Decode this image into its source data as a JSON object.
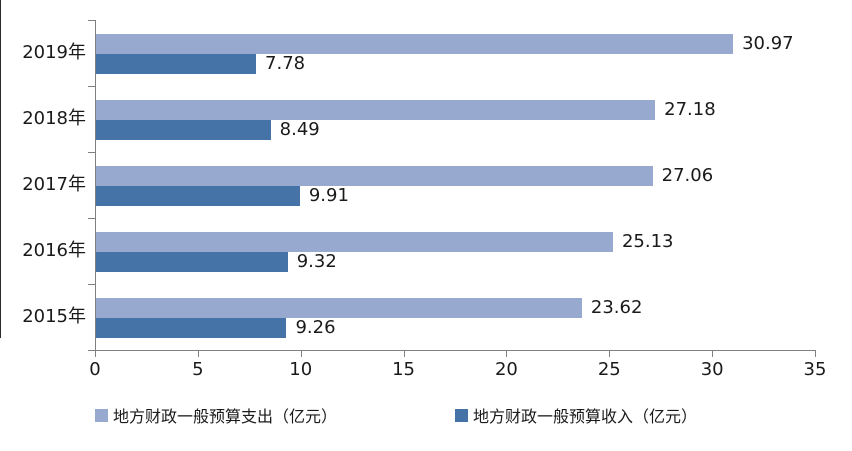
{
  "chart_data": {
    "type": "bar",
    "orientation": "horizontal",
    "categories": [
      "2019年",
      "2018年",
      "2017年",
      "2016年",
      "2015年"
    ],
    "series": [
      {
        "name": "地方财政一般预算支出（亿元）",
        "color": "#97A9CF",
        "values": [
          30.97,
          27.18,
          27.06,
          25.13,
          23.62
        ]
      },
      {
        "name": "地方财政一般预算收入（亿元）",
        "color": "#4573A7",
        "values": [
          7.78,
          8.49,
          9.91,
          9.32,
          9.26
        ]
      }
    ],
    "x_axis": {
      "min": 0,
      "max": 35,
      "tick_interval": 5,
      "tick_labels": [
        "0",
        "5",
        "10",
        "15",
        "20",
        "25",
        "30",
        "35"
      ]
    },
    "grid": false,
    "legend_position": "bottom",
    "axis_color": "#808080"
  }
}
